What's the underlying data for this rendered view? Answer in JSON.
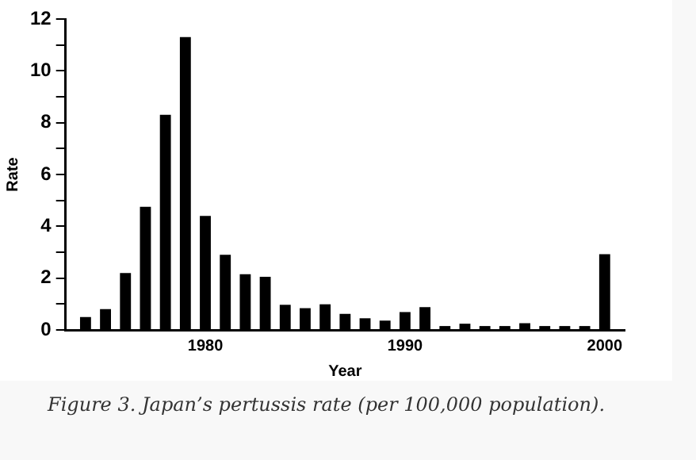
{
  "chart_data": {
    "type": "bar",
    "x": [
      1974,
      1975,
      1976,
      1977,
      1978,
      1979,
      1980,
      1981,
      1982,
      1983,
      1984,
      1985,
      1986,
      1987,
      1988,
      1989,
      1990,
      1991,
      1992,
      1993,
      1994,
      1995,
      1996,
      1997,
      1998,
      1999,
      2000
    ],
    "values": [
      0.5,
      0.8,
      2.2,
      4.75,
      8.3,
      11.3,
      4.4,
      2.9,
      2.15,
      2.05,
      0.97,
      0.84,
      0.99,
      0.62,
      0.45,
      0.36,
      0.69,
      0.88,
      0.15,
      0.24,
      0.15,
      0.15,
      0.26,
      0.15,
      0.15,
      0.15,
      2.92
    ],
    "color": "#000000",
    "xlabel": "Year",
    "ylabel": "Rate",
    "xlim": [
      1973,
      2001
    ],
    "xticks": [
      1980,
      1990,
      2000
    ],
    "ylim": [
      0,
      12
    ],
    "yticks": [
      0,
      {
        "value": 1,
        "label": null
      },
      2,
      {
        "value": 3,
        "label": null
      },
      4,
      {
        "value": 5,
        "label": null
      },
      6,
      {
        "value": 7,
        "label": null
      },
      8,
      {
        "value": 9,
        "label": null
      },
      10,
      {
        "value": 11,
        "label": null
      },
      12
    ],
    "grid": false,
    "legend": false,
    "annotations": [
      "Figure 3. Japan’s pertussis rate (per 100,000 population)."
    ]
  }
}
